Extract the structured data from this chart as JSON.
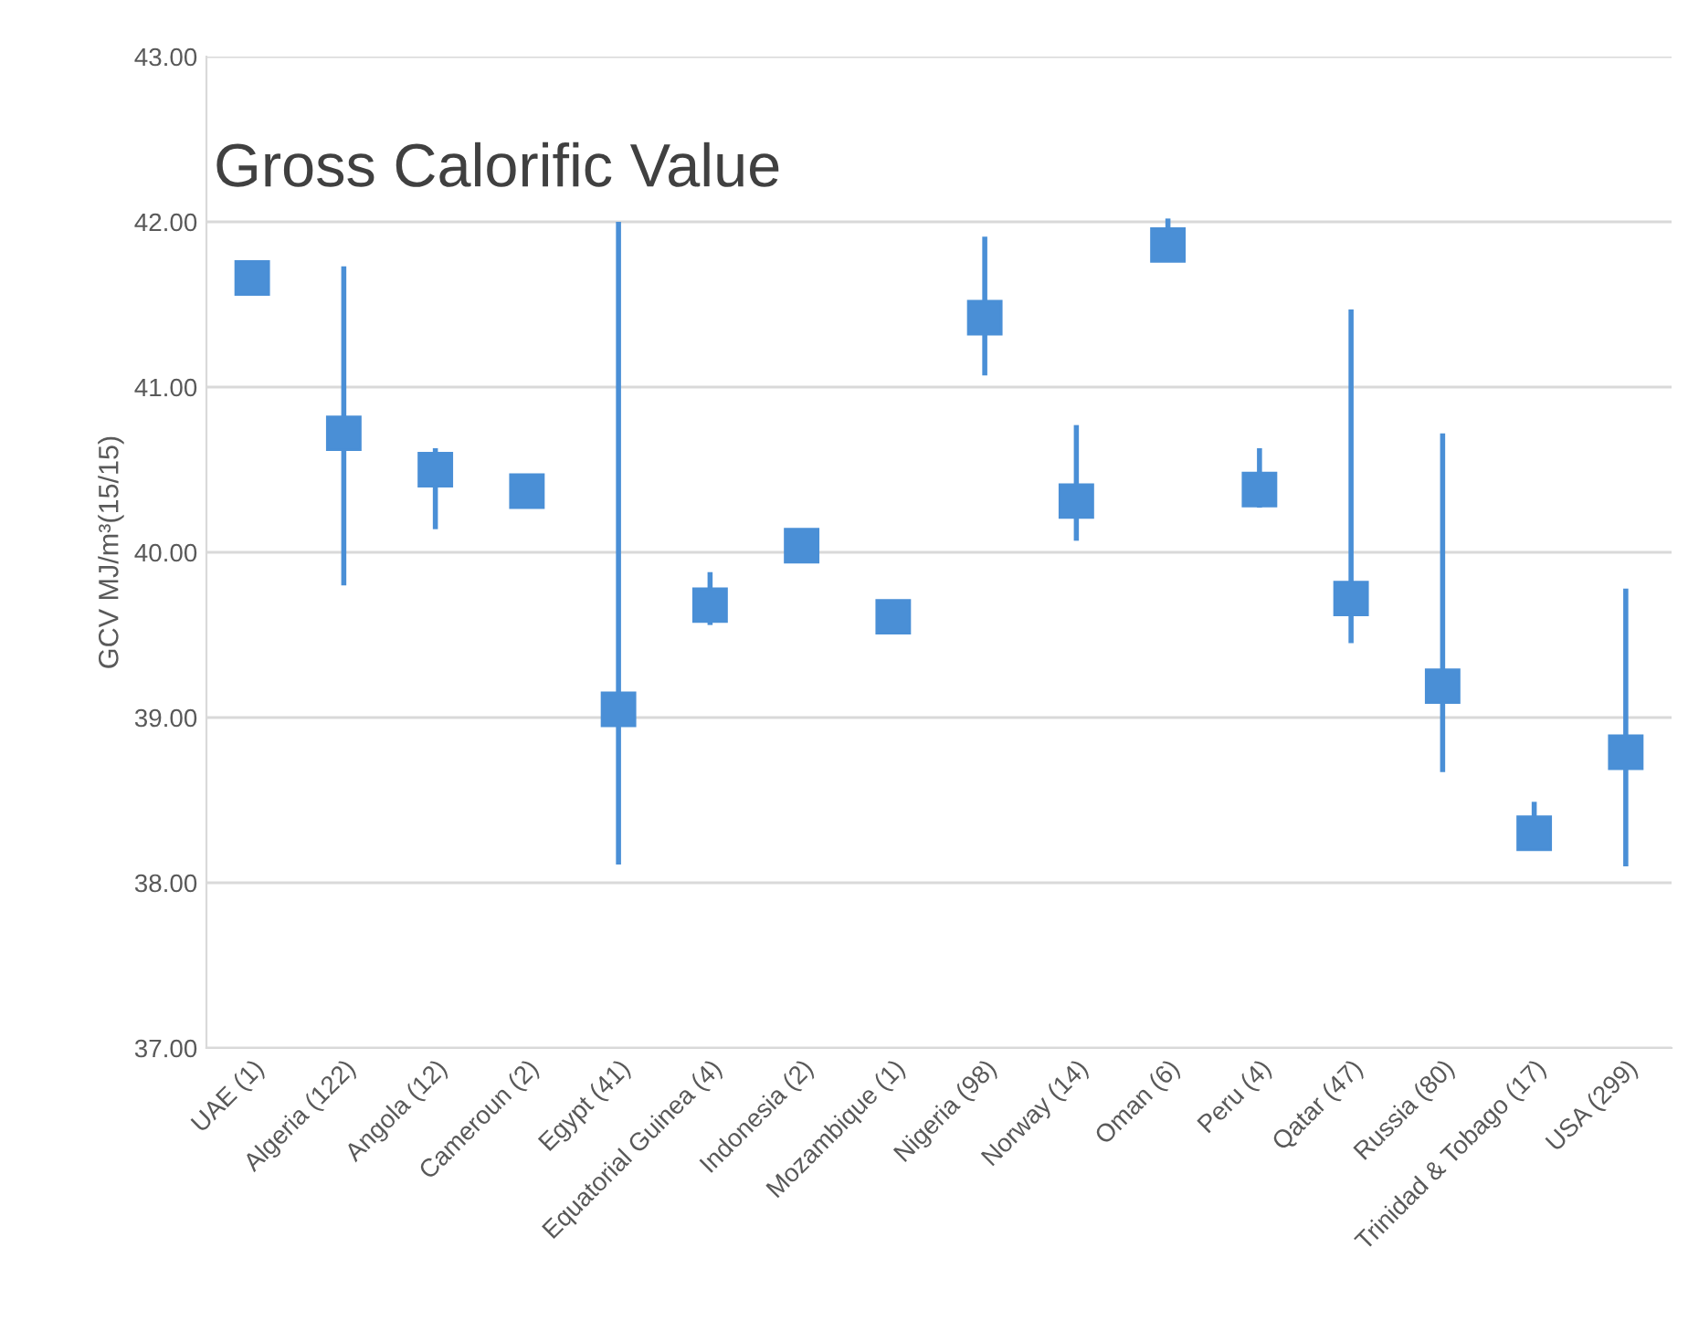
{
  "chart_data": {
    "type": "scatter",
    "title": "Gross Calorific Value",
    "ylabel": "GCV MJ/m³(15/15)",
    "categories": [
      "UAE (1)",
      "Algeria (122)",
      "Angola (12)",
      "Cameroun (2)",
      "Egypt (41)",
      "Equatorial Guinea (4)",
      "Indonesia (2)",
      "Mozambique (1)",
      "Nigeria (98)",
      "Norway (14)",
      "Oman (6)",
      "Peru (4)",
      "Qatar (47)",
      "Russia (80)",
      "Trinidad & Tobago (17)",
      "USA (299)"
    ],
    "values": [
      41.66,
      40.72,
      40.5,
      40.37,
      39.05,
      39.68,
      40.04,
      39.61,
      41.42,
      40.31,
      41.86,
      40.38,
      39.72,
      39.19,
      38.3,
      38.79
    ],
    "errors": [
      null,
      [
        39.8,
        41.73
      ],
      [
        40.14,
        40.63
      ],
      null,
      [
        38.11,
        42.0
      ],
      [
        39.56,
        39.88
      ],
      null,
      null,
      [
        41.07,
        41.91
      ],
      [
        40.07,
        40.77
      ],
      [
        41.86,
        42.02
      ],
      [
        40.27,
        40.63
      ],
      [
        39.45,
        41.47
      ],
      [
        38.67,
        40.72
      ],
      [
        38.3,
        38.49
      ],
      [
        38.1,
        39.78
      ]
    ],
    "color": "#4a8fd6",
    "marker": "square",
    "ylim": [
      37,
      43
    ],
    "yticks": [
      {
        "value": 37,
        "label": "37.00"
      },
      {
        "value": 38,
        "label": "38.00"
      },
      {
        "value": 39,
        "label": "39.00"
      },
      {
        "value": 40,
        "label": "40.00"
      },
      {
        "value": 41,
        "label": "41.00"
      },
      {
        "value": 42,
        "label": "42.00"
      },
      {
        "value": 43,
        "label": "43.00"
      }
    ],
    "grid": "y",
    "legend": false
  }
}
